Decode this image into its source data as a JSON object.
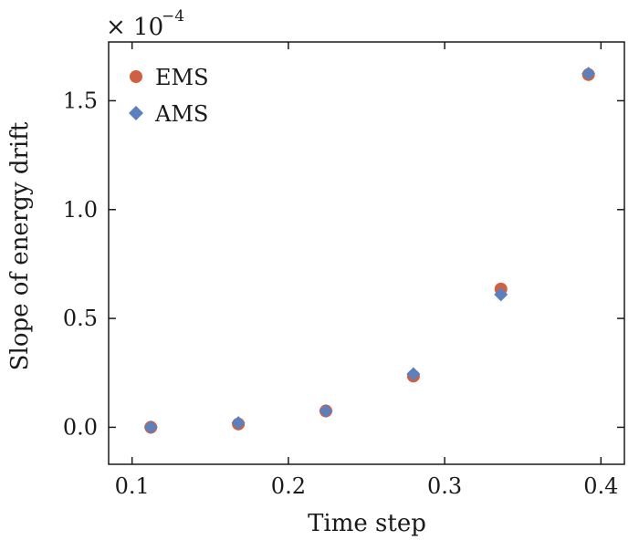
{
  "chart_data": {
    "type": "scatter",
    "xlabel": "Time step",
    "ylabel": "Slope of energy drift",
    "y_multiplier": {
      "base": "× 10",
      "exponent": "−4"
    },
    "xlim": [
      0.085,
      0.415
    ],
    "ylim": [
      -0.17,
      1.77
    ],
    "xticks": [
      0.1,
      0.2,
      0.3,
      0.4
    ],
    "xtick_labels": [
      "0.1",
      "0.2",
      "0.3",
      "0.4"
    ],
    "yticks": [
      0.0,
      0.5,
      1.0,
      1.5
    ],
    "ytick_labels": [
      "0.0",
      "0.5",
      "1.0",
      "1.5"
    ],
    "grid": false,
    "legend_position": "top-left",
    "series": [
      {
        "name": "EMS",
        "marker": "circle",
        "color": "#d0603f",
        "x": [
          0.112,
          0.168,
          0.224,
          0.28,
          0.336,
          0.392
        ],
        "y": [
          0.0,
          0.015,
          0.075,
          0.235,
          0.635,
          1.62
        ]
      },
      {
        "name": "AMS",
        "marker": "diamond",
        "color": "#5b7fbf",
        "x": [
          0.112,
          0.168,
          0.224,
          0.28,
          0.336,
          0.392
        ],
        "y": [
          0.0,
          0.02,
          0.075,
          0.245,
          0.61,
          1.625
        ]
      }
    ]
  }
}
